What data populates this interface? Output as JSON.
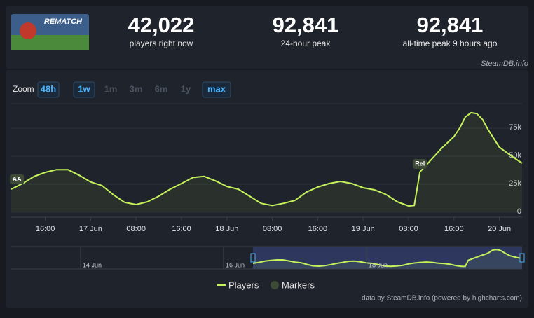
{
  "header": {
    "image_text": "REMATCH",
    "stats": [
      {
        "value": "42,022",
        "label": "players right now"
      },
      {
        "value": "92,841",
        "label": "24-hour peak"
      },
      {
        "value": "92,841",
        "label": "all-time peak 9 hours ago"
      }
    ],
    "source": "SteamDB.info"
  },
  "zoom": {
    "label": "Zoom",
    "options": [
      {
        "label": "48h",
        "active": true
      },
      {
        "label": "1w",
        "active": true
      },
      {
        "label": "1m",
        "active": false
      },
      {
        "label": "3m",
        "active": false
      },
      {
        "label": "6m",
        "active": false
      },
      {
        "label": "1y",
        "active": false
      },
      {
        "label": "max",
        "active": true
      }
    ]
  },
  "chart_data": {
    "type": "line",
    "x": [
      10,
      12,
      14,
      16,
      18,
      20,
      22,
      24,
      26,
      28,
      30,
      32,
      34,
      36,
      38,
      40,
      42,
      44,
      46,
      48,
      50,
      52,
      54,
      56,
      58,
      60,
      62,
      64,
      66,
      68,
      70,
      72,
      74,
      76,
      78,
      80,
      81,
      82,
      84,
      86,
      88,
      89,
      90,
      91,
      92,
      93,
      94,
      96,
      98,
      100
    ],
    "series": [
      {
        "name": "Players",
        "color": "#c5f25a",
        "values": [
          20600,
          25600,
          31900,
          35600,
          38000,
          38000,
          33000,
          27000,
          23800,
          15600,
          8800,
          6900,
          9400,
          14400,
          20600,
          25600,
          31000,
          32000,
          28000,
          23000,
          20600,
          14400,
          8000,
          6000,
          8000,
          10600,
          18000,
          22500,
          25600,
          27500,
          25600,
          21900,
          20000,
          16000,
          9400,
          5600,
          6000,
          36000,
          47000,
          58000,
          67500,
          75000,
          85000,
          88800,
          88000,
          83000,
          73800,
          58000,
          50600,
          43800
        ]
      }
    ],
    "xlim": [
      10,
      100
    ],
    "xticks": [
      {
        "value": 16,
        "label": "16:00"
      },
      {
        "value": 24,
        "label": "17 Jun"
      },
      {
        "value": 32,
        "label": "08:00"
      },
      {
        "value": 40,
        "label": "16:00"
      },
      {
        "value": 48,
        "label": "18 Jun"
      },
      {
        "value": 56,
        "label": "08:00"
      },
      {
        "value": 64,
        "label": "16:00"
      },
      {
        "value": 72,
        "label": "19 Jun"
      },
      {
        "value": 80,
        "label": "08:00"
      },
      {
        "value": 88,
        "label": "16:00"
      },
      {
        "value": 96,
        "label": "20 Jun"
      }
    ],
    "ylim": [
      0,
      96875
    ],
    "yticks": [
      0,
      {
        "value": 25000,
        "label": "25k"
      },
      {
        "value": 50000,
        "label": "50k"
      },
      {
        "value": 75000,
        "label": "75k"
      }
    ],
    "grid": true,
    "annotations": [
      {
        "label": "AA",
        "x": 11
      },
      {
        "label": "Rel",
        "x": 82
      }
    ],
    "legend": [
      {
        "label": "Markers",
        "color": "#3d4a35"
      }
    ],
    "navigator": {
      "labels": [
        "14 Jun",
        "16 Jun",
        "18 Jun"
      ]
    },
    "credit": "data by SteamDB.info (powered by highcharts.com)"
  }
}
